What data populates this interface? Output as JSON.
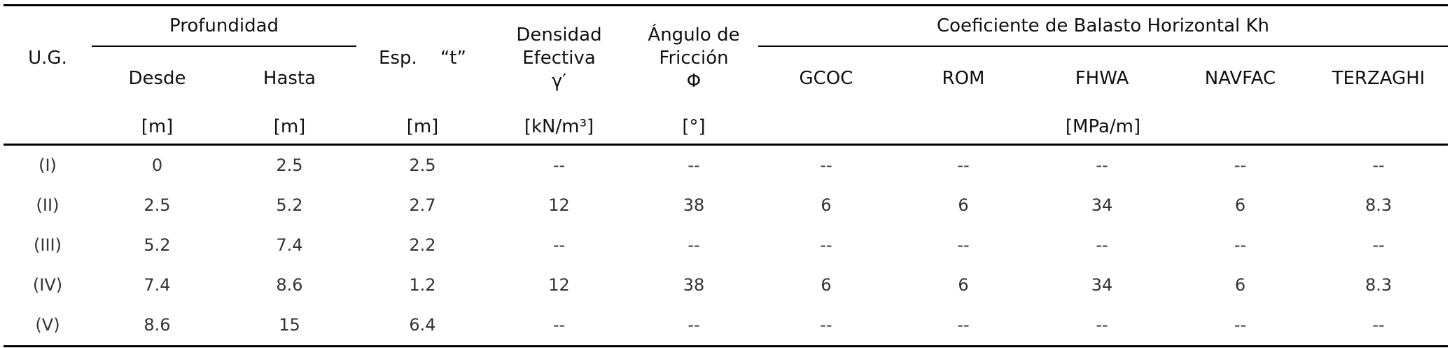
{
  "header": {
    "ug": "U.G.",
    "profundidad": "Profundidad",
    "desde": "Desde",
    "hasta": "Hasta",
    "espesor": "Esp.    “t”",
    "densidad": [
      "Densidad",
      "Efectiva",
      "γ′"
    ],
    "angulo": [
      "Ángulo de",
      "Fricción",
      "Φ"
    ],
    "coeficiente": "Coeficiente de Balasto Horizontal Kh",
    "methods": [
      "GCOC",
      "ROM",
      "FHWA",
      "NAVFAC",
      "TERZAGHI"
    ]
  },
  "units": [
    "[m]",
    "[m]",
    "[m]",
    "[kN/m³]",
    "[°]",
    "[MPa/m]"
  ],
  "rows": [
    [
      "(I)",
      0,
      2.5,
      2.5,
      "--",
      "--",
      "--",
      "--",
      "--",
      "--",
      "--"
    ],
    [
      "(II)",
      2.5,
      5.2,
      2.7,
      12,
      38,
      6,
      6,
      34,
      6,
      8.3
    ],
    [
      "(III)",
      5.2,
      7.4,
      2.2,
      "--",
      "--",
      "--",
      "--",
      "--",
      "--",
      "--"
    ],
    [
      "(IV)",
      7.4,
      8.6,
      1.2,
      12,
      38,
      6,
      6,
      34,
      6,
      8.3
    ],
    [
      "(V)",
      8.6,
      15,
      6.4,
      "--",
      "--",
      "--",
      "--",
      "--",
      "--",
      "--"
    ]
  ]
}
